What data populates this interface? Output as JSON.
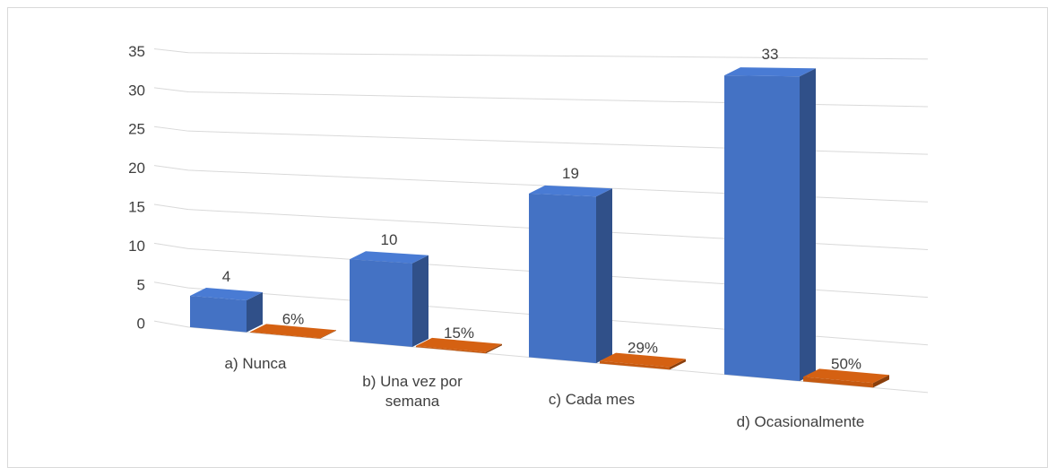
{
  "chart_data": {
    "type": "bar3d",
    "categories": [
      "a) Nunca",
      "b) Una vez por semana",
      "c) Cada mes",
      "d) Ocasionalmente"
    ],
    "series": [
      {
        "color": "#4472c4",
        "values": [
          4,
          10,
          19,
          33
        ]
      },
      {
        "color": "#c55a11",
        "values": [
          0.06,
          0.15,
          0.29,
          0.5
        ],
        "value_labels": [
          "6%",
          "15%",
          "29%",
          "50%"
        ]
      }
    ],
    "ylim": [
      0,
      35
    ],
    "yticks": [
      0,
      5,
      10,
      15,
      20,
      25,
      30,
      35
    ],
    "grid": true
  }
}
